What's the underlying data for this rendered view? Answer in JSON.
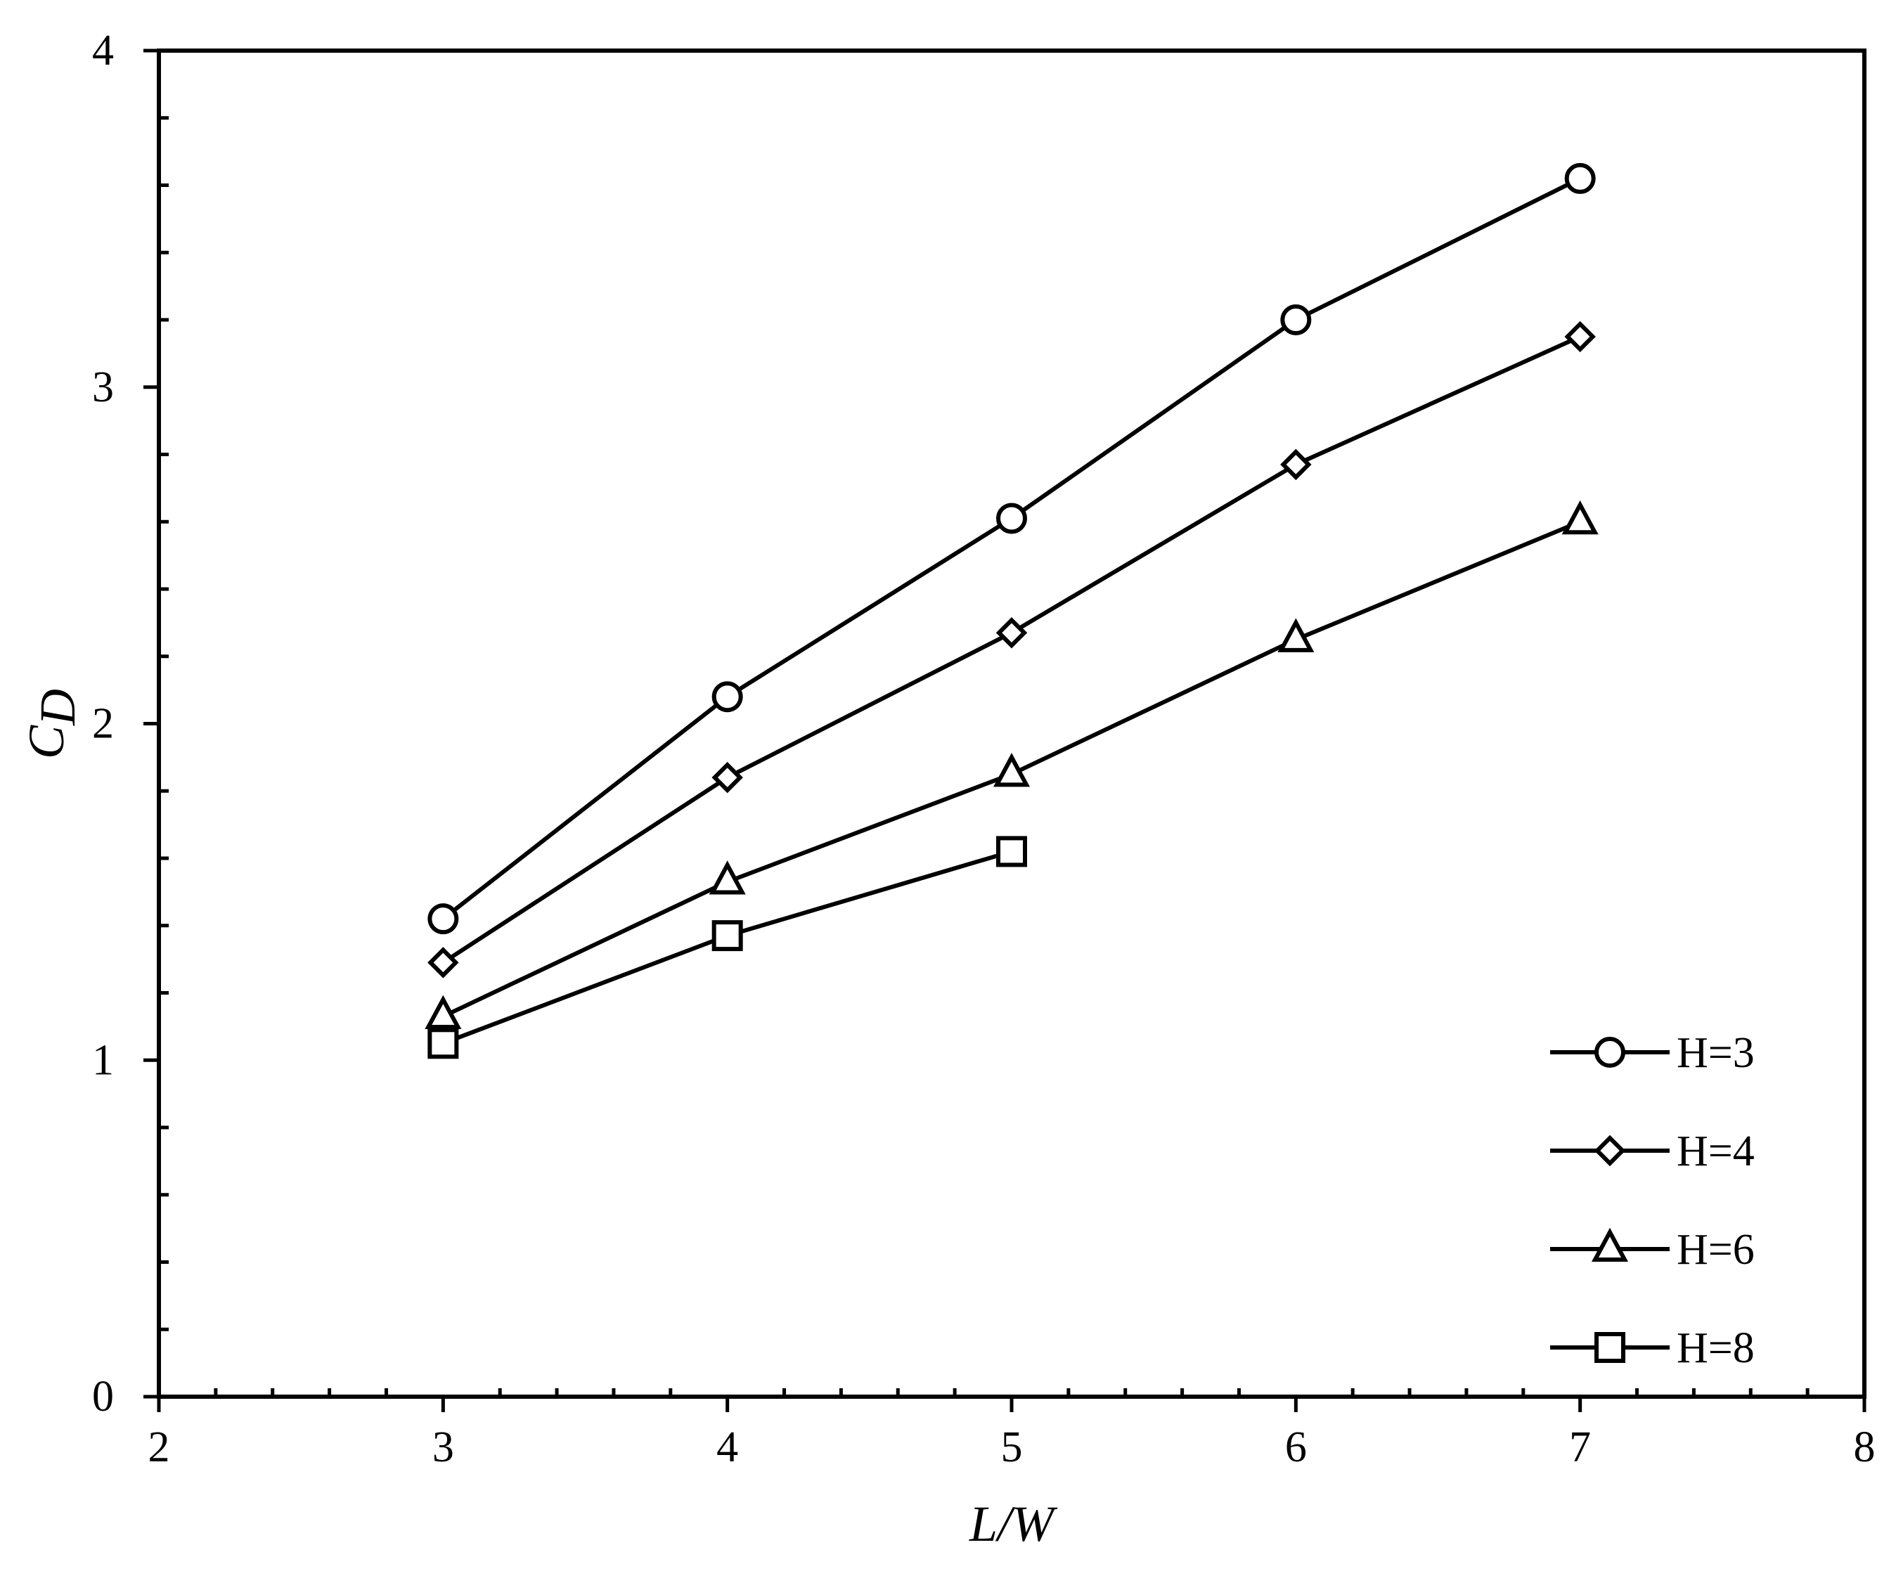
{
  "chart_data": {
    "type": "line",
    "xlabel": "L/W",
    "ylabel": {
      "main": "C",
      "sub": "D"
    },
    "xlim": [
      2,
      8
    ],
    "ylim": [
      0,
      4
    ],
    "xticks": [
      2,
      3,
      4,
      5,
      6,
      7,
      8
    ],
    "yticks": [
      0,
      1,
      2,
      3,
      4
    ],
    "x_minor_step": 0.2,
    "y_minor_step": 0.2,
    "grid": false,
    "legend_position": "bottom-right",
    "series": [
      {
        "name": "H=3",
        "marker": "circle",
        "x": [
          3,
          4,
          5,
          6,
          7
        ],
        "values": [
          1.42,
          2.08,
          2.61,
          3.2,
          3.62
        ]
      },
      {
        "name": "H=4",
        "marker": "diamond",
        "x": [
          3,
          4,
          5,
          6,
          7
        ],
        "values": [
          1.29,
          1.84,
          2.27,
          2.77,
          3.15
        ]
      },
      {
        "name": "H=6",
        "marker": "triangle",
        "x": [
          3,
          4,
          5,
          6,
          7
        ],
        "values": [
          1.13,
          1.53,
          1.85,
          2.25,
          2.6
        ]
      },
      {
        "name": "H=8",
        "marker": "square",
        "x": [
          3,
          4,
          5
        ],
        "values": [
          1.05,
          1.37,
          1.62
        ]
      }
    ]
  }
}
